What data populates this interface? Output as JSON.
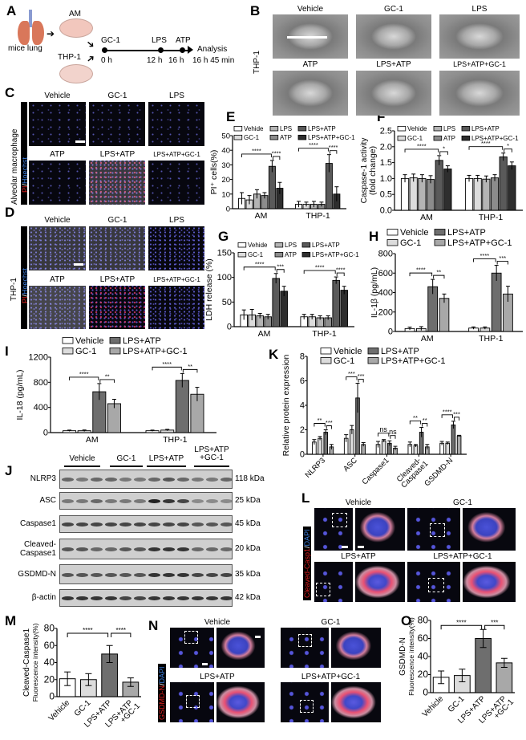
{
  "panels": {
    "a": "A",
    "b": "B",
    "c": "C",
    "d": "D",
    "e": "E",
    "f": "F",
    "g": "G",
    "h": "H",
    "i": "I",
    "j": "J",
    "k": "K",
    "l": "L",
    "m": "M",
    "n": "N",
    "o": "O"
  },
  "panel_a": {
    "source": "mice lung",
    "cell_1": "AM",
    "cell_2": "THP-1",
    "timeline": [
      {
        "event": "GC-1",
        "time": "0 h"
      },
      {
        "event": "LPS",
        "time": "12 h"
      },
      {
        "event": "ATP",
        "time": "16 h"
      },
      {
        "event": "Analysis",
        "time": "16 h 45 min"
      }
    ],
    "colors": {
      "lung": "#d9775a",
      "trachea": "#8a9bd1",
      "dish": "#f2c7bd"
    }
  },
  "panel_b": {
    "row_label": "THP-1",
    "conditions": [
      "Vehicle",
      "GC-1",
      "LPS",
      "ATP",
      "LPS+ATP",
      "LPS+ATP+GC-1"
    ]
  },
  "panel_c": {
    "row_label": "Alveolar macrophage",
    "stain_red": "PI",
    "stain_sep": "/",
    "stain_blue": "Hoechst",
    "conditions": [
      "Vehicle",
      "GC-1",
      "LPS",
      "ATP",
      "LPS+ATP",
      "LPS+ATP+GC-1"
    ]
  },
  "panel_d": {
    "row_label": "THP-1",
    "stain_red": "PI",
    "stain_sep": "/",
    "stain_blue": "Hoechst",
    "conditions": [
      "Vehicle",
      "GC-1",
      "LPS",
      "ATP",
      "LPS+ATP",
      "LPS+ATP+GC-1"
    ]
  },
  "panel_j": {
    "groups": [
      "Vehicle",
      "GC-1",
      "LPS+ATP",
      "LPS+ATP",
      "+GC-1"
    ],
    "proteins": [
      {
        "name": "NLRP3",
        "kda": "118 kDa"
      },
      {
        "name": "ASC",
        "kda": "25 kDa"
      },
      {
        "name": "Caspase1",
        "kda": "45 kDa"
      },
      {
        "name": "Cleaved-",
        "name2": "Caspase1",
        "kda": "20 kDa"
      },
      {
        "name": "GSDMD-N",
        "kda": "35 kDa"
      },
      {
        "name": "β-actin",
        "kda": "42 kDa"
      }
    ]
  },
  "panel_l": {
    "stain_red": "Cleaved-Casp1",
    "stain_sep": "/",
    "stain_blue": "DAPI",
    "conditions": [
      "Vehicle",
      "GC-1",
      "LPS+ATP",
      "LPS+ATP+GC-1"
    ]
  },
  "panel_n": {
    "stain_red": "GSDMD-N",
    "stain_sep": "/",
    "stain_blue": "DAPI",
    "conditions": [
      "Vehicle",
      "GC-1",
      "LPS+ATP",
      "LPS+ATP+GC-1"
    ]
  },
  "chart_data": [
    {
      "id": "E",
      "type": "bar",
      "ylabel": "PI⁺ cells(%)",
      "ylim": [
        0,
        50
      ],
      "yticks": [
        0,
        10,
        20,
        30,
        40,
        50
      ],
      "ytick_decimals": 0,
      "categories": [
        "AM",
        "THP-1"
      ],
      "series": [
        {
          "name": "Vehide",
          "color": "#ffffff",
          "values": [
            7,
            3
          ],
          "errors": [
            4,
            2
          ]
        },
        {
          "name": "GC-1",
          "color": "#dcdcdc",
          "values": [
            6,
            3
          ],
          "errors": [
            3,
            1.5
          ]
        },
        {
          "name": "LPS",
          "color": "#b4b4b4",
          "values": [
            10,
            3
          ],
          "errors": [
            3,
            2
          ]
        },
        {
          "name": "ATP",
          "color": "#8c8c8c",
          "values": [
            9,
            3
          ],
          "errors": [
            2,
            1.5
          ]
        },
        {
          "name": "LPS+ATP",
          "color": "#5a5a5a",
          "values": [
            29,
            31
          ],
          "errors": [
            4,
            6
          ]
        },
        {
          "name": "LPS+ATP+GC-1",
          "color": "#2e2e2e",
          "values": [
            14,
            10
          ],
          "errors": [
            4,
            5
          ]
        }
      ],
      "significance": [
        {
          "category": 0,
          "from": 0,
          "to": 4,
          "label": "****"
        },
        {
          "category": 0,
          "from": 4,
          "to": 5,
          "label": "****"
        },
        {
          "category": 1,
          "from": 0,
          "to": 4,
          "label": "****"
        },
        {
          "category": 1,
          "from": 4,
          "to": 5,
          "label": "****"
        }
      ]
    },
    {
      "id": "F",
      "type": "bar",
      "ylabel": "Caspase-1 activity",
      "ylabel2": "(fold change)",
      "ylim": [
        0,
        2.5
      ],
      "yticks": [
        0,
        0.5,
        1,
        1.5,
        2,
        2.5
      ],
      "ytick_decimals": 1,
      "categories": [
        "AM",
        "THP-1"
      ],
      "series": [
        {
          "name": "Vehide",
          "color": "#ffffff",
          "values": [
            1.0,
            1.0
          ],
          "errors": [
            0.12,
            0.1
          ]
        },
        {
          "name": "GC-1",
          "color": "#dcdcdc",
          "values": [
            1.02,
            1.0
          ],
          "errors": [
            0.12,
            0.1
          ]
        },
        {
          "name": "LPS",
          "color": "#b4b4b4",
          "values": [
            1.0,
            0.98
          ],
          "errors": [
            0.12,
            0.1
          ]
        },
        {
          "name": "ATP",
          "color": "#8c8c8c",
          "values": [
            0.97,
            1.02
          ],
          "errors": [
            0.12,
            0.1
          ]
        },
        {
          "name": "LPS+ATP",
          "color": "#5a5a5a",
          "values": [
            1.57,
            1.68
          ],
          "errors": [
            0.15,
            0.12
          ]
        },
        {
          "name": "LPS+ATP+GC-1",
          "color": "#2e2e2e",
          "values": [
            1.3,
            1.4
          ],
          "errors": [
            0.1,
            0.12
          ]
        }
      ],
      "significance": [
        {
          "category": 0,
          "from": 0,
          "to": 4,
          "label": "****"
        },
        {
          "category": 0,
          "from": 4,
          "to": 5,
          "label": "*"
        },
        {
          "category": 1,
          "from": 0,
          "to": 4,
          "label": "****"
        },
        {
          "category": 1,
          "from": 4,
          "to": 5,
          "label": "*"
        }
      ]
    },
    {
      "id": "G",
      "type": "bar",
      "ylabel": "LDH release (%)",
      "ylim": [
        0,
        150
      ],
      "yticks": [
        0,
        50,
        100,
        150
      ],
      "ytick_decimals": 0,
      "categories": [
        "AM",
        "THP-1"
      ],
      "series": [
        {
          "name": "Vehide",
          "color": "#ffffff",
          "values": [
            24,
            20
          ],
          "errors": [
            10,
            5
          ]
        },
        {
          "name": "GC-1",
          "color": "#dcdcdc",
          "values": [
            24,
            20
          ],
          "errors": [
            11,
            5
          ]
        },
        {
          "name": "LPS",
          "color": "#b4b4b4",
          "values": [
            22,
            18
          ],
          "errors": [
            5,
            4
          ]
        },
        {
          "name": "ATP",
          "color": "#8c8c8c",
          "values": [
            20,
            18
          ],
          "errors": [
            5,
            4
          ]
        },
        {
          "name": "LPS+ATP",
          "color": "#5a5a5a",
          "values": [
            98,
            94
          ],
          "errors": [
            10,
            7
          ]
        },
        {
          "name": "LPS+ATP+GC-1",
          "color": "#2e2e2e",
          "values": [
            72,
            74
          ],
          "errors": [
            10,
            8
          ]
        }
      ],
      "significance": [
        {
          "category": 0,
          "from": 0,
          "to": 4,
          "label": "****"
        },
        {
          "category": 0,
          "from": 4,
          "to": 5,
          "label": "***"
        },
        {
          "category": 1,
          "from": 0,
          "to": 4,
          "label": "****"
        },
        {
          "category": 1,
          "from": 4,
          "to": 5,
          "label": "****"
        }
      ]
    },
    {
      "id": "H",
      "type": "bar",
      "ylabel": "IL-1β (pg/mL)",
      "ylim": [
        0,
        800
      ],
      "yticks": [
        0,
        200,
        400,
        600,
        800
      ],
      "ytick_decimals": 0,
      "categories": [
        "AM",
        "THP-1"
      ],
      "series": [
        {
          "name": "Vehicle",
          "color": "#ffffff",
          "values": [
            30,
            35
          ],
          "errors": [
            15,
            12
          ]
        },
        {
          "name": "GC-1",
          "color": "#dcdcdc",
          "values": [
            30,
            35
          ],
          "errors": [
            20,
            12
          ]
        },
        {
          "name": "LPS+ATP",
          "color": "#6e6e6e",
          "values": [
            460,
            600
          ],
          "errors": [
            75,
            80
          ]
        },
        {
          "name": "LPS+ATP+GC-1",
          "color": "#a8a8a8",
          "values": [
            340,
            385
          ],
          "errors": [
            45,
            80
          ]
        }
      ],
      "significance": [
        {
          "category": 0,
          "from": 0,
          "to": 2,
          "label": "****"
        },
        {
          "category": 0,
          "from": 2,
          "to": 3,
          "label": "**"
        },
        {
          "category": 1,
          "from": 0,
          "to": 2,
          "label": "****"
        },
        {
          "category": 1,
          "from": 2,
          "to": 3,
          "label": "***"
        }
      ]
    },
    {
      "id": "I",
      "type": "bar",
      "ylabel": "IL-18 (pg/mL)",
      "ylim": [
        0,
        1200
      ],
      "yticks": [
        0,
        400,
        800,
        1200
      ],
      "ytick_decimals": 0,
      "categories": [
        "AM",
        "THP-1"
      ],
      "series": [
        {
          "name": "Vehicle",
          "color": "#ffffff",
          "values": [
            30,
            30
          ],
          "errors": [
            10,
            10
          ]
        },
        {
          "name": "GC-1",
          "color": "#dcdcdc",
          "values": [
            30,
            40
          ],
          "errors": [
            12,
            12
          ]
        },
        {
          "name": "LPS+ATP",
          "color": "#6e6e6e",
          "values": [
            650,
            830
          ],
          "errors": [
            130,
            110
          ]
        },
        {
          "name": "LPS+ATP+GC-1",
          "color": "#a8a8a8",
          "values": [
            460,
            610
          ],
          "errors": [
            70,
            110
          ]
        }
      ],
      "significance": [
        {
          "category": 0,
          "from": 0,
          "to": 2,
          "label": "****"
        },
        {
          "category": 0,
          "from": 2,
          "to": 3,
          "label": "**"
        },
        {
          "category": 1,
          "from": 0,
          "to": 2,
          "label": "****"
        },
        {
          "category": 1,
          "from": 2,
          "to": 3,
          "label": "**"
        }
      ]
    },
    {
      "id": "K",
      "type": "bar",
      "ylabel": "Relative protein expression",
      "ylim": [
        0,
        8
      ],
      "yticks": [
        0,
        2,
        4,
        6,
        8
      ],
      "ytick_decimals": 0,
      "rotate_labels": true,
      "categories": [
        "NLRP3",
        "ASC",
        "Caspase1",
        "Cleaved-|Caspase1",
        "GSDMD-N"
      ],
      "series": [
        {
          "name": "Vehicle",
          "color": "#ffffff",
          "values": [
            1.0,
            1.3,
            0.8,
            0.8,
            0.9
          ],
          "errors": [
            0.2,
            0.3,
            0.25,
            0.2,
            0.15
          ]
        },
        {
          "name": "GC-1",
          "color": "#dcdcdc",
          "values": [
            1.3,
            2.0,
            1.1,
            0.7,
            0.9
          ],
          "errors": [
            0.15,
            0.35,
            0.1,
            0.1,
            0.1
          ]
        },
        {
          "name": "LPS+ATP",
          "color": "#6e6e6e",
          "values": [
            1.8,
            4.6,
            0.9,
            1.8,
            2.4
          ],
          "errors": [
            0.2,
            1.2,
            0.2,
            0.4,
            0.3
          ]
        },
        {
          "name": "LPS+ATP+GC-1",
          "color": "#a8a8a8",
          "values": [
            0.6,
            0.8,
            0.5,
            0.6,
            1.5
          ],
          "errors": [
            0.2,
            0.15,
            0.15,
            0.2,
            0.05
          ]
        }
      ],
      "significance": [
        {
          "category": 0,
          "from": 0,
          "to": 2,
          "label": "**"
        },
        {
          "category": 0,
          "from": 2,
          "to": 3,
          "label": "***"
        },
        {
          "category": 1,
          "from": 0,
          "to": 2,
          "label": "***"
        },
        {
          "category": 1,
          "from": 2,
          "to": 3,
          "label": "***"
        },
        {
          "category": 2,
          "from": 0,
          "to": 2,
          "label": "ns"
        },
        {
          "category": 2,
          "from": 2,
          "to": 3,
          "label": "ns"
        },
        {
          "category": 3,
          "from": 0,
          "to": 2,
          "label": "**"
        },
        {
          "category": 3,
          "from": 2,
          "to": 3,
          "label": "**"
        },
        {
          "category": 4,
          "from": 0,
          "to": 2,
          "label": "****"
        },
        {
          "category": 4,
          "from": 2,
          "to": 3,
          "label": "***"
        }
      ]
    },
    {
      "id": "M",
      "type": "bar",
      "ylabel": "Cleaved-Caspase1",
      "ylabel2": "Fluorescence intensity(%)",
      "ylim": [
        0,
        80
      ],
      "yticks": [
        0,
        20,
        40,
        60,
        80
      ],
      "ytick_decimals": 0,
      "rotate_labels": true,
      "single": true,
      "categories": [
        "Vehicle",
        "GC-1",
        "LPS+ATP",
        "LPS+ATP|+GC-1"
      ],
      "series": [
        {
          "colors": [
            "#ffffff",
            "#dcdcdc",
            "#6e6e6e",
            "#a8a8a8"
          ],
          "values": [
            21,
            20,
            50,
            17
          ],
          "errors": [
            8,
            7,
            10,
            5
          ]
        }
      ],
      "significance": [
        {
          "from": 0,
          "to": 2,
          "label": "****"
        },
        {
          "from": 2,
          "to": 3,
          "label": "****"
        }
      ]
    },
    {
      "id": "O",
      "type": "bar",
      "ylabel": "GSDMD-N",
      "ylabel2": "Fluorescence intensity(%)",
      "ylim": [
        0,
        80
      ],
      "yticks": [
        0,
        20,
        40,
        60,
        80
      ],
      "ytick_decimals": 0,
      "rotate_labels": true,
      "single": true,
      "categories": [
        "Vehicle",
        "GC-1",
        "LPS+ATP",
        "LPS+ATP|+GC-1"
      ],
      "series": [
        {
          "colors": [
            "#ffffff",
            "#dcdcdc",
            "#6e6e6e",
            "#a8a8a8"
          ],
          "values": [
            17,
            19,
            60,
            33
          ],
          "errors": [
            7,
            7,
            10,
            5
          ]
        }
      ],
      "significance": [
        {
          "from": 0,
          "to": 2,
          "label": "****"
        },
        {
          "from": 2,
          "to": 3,
          "label": "***"
        }
      ]
    }
  ]
}
